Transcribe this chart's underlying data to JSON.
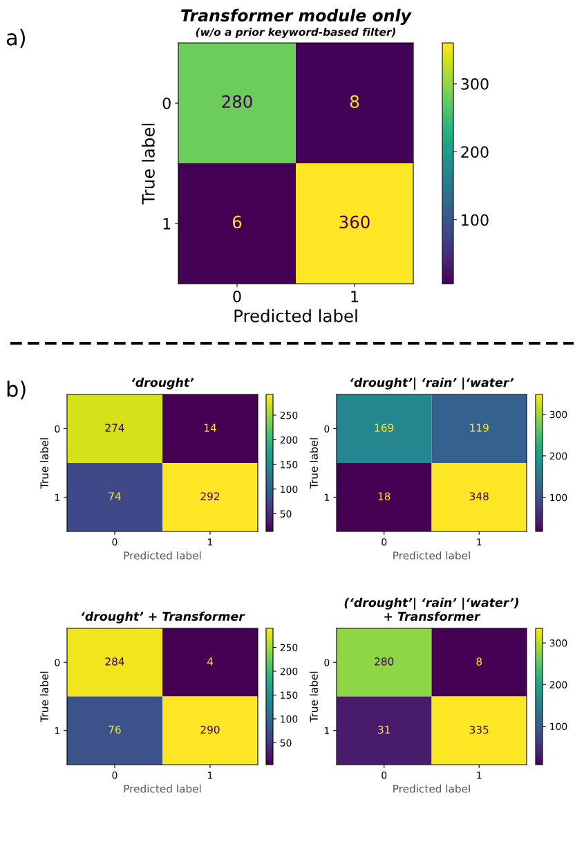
{
  "chart_data": [
    {
      "type": "heatmap",
      "title": "Transformer module only",
      "subtitle": "(w/o a prior keyword-based filter)",
      "xlabel": "Predicted label",
      "ylabel": "True label",
      "categories": [
        "0",
        "1"
      ],
      "y_categories": [
        "0",
        "1"
      ],
      "cells": [
        [
          280,
          8
        ],
        [
          6,
          360
        ]
      ],
      "clim": [
        6,
        360
      ],
      "cticks": [
        100,
        200,
        300
      ],
      "data_labels": true,
      "annotations": [
        "a)"
      ]
    },
    {
      "type": "heatmap",
      "title": "‘drought’",
      "xlabel": "Predicted label",
      "ylabel": "True label",
      "categories": [
        "0",
        "1"
      ],
      "y_categories": [
        "0",
        "1"
      ],
      "cells": [
        [
          274,
          14
        ],
        [
          74,
          292
        ]
      ],
      "clim": [
        14,
        292
      ],
      "cticks": [
        50,
        100,
        150,
        200,
        250
      ],
      "data_labels": true,
      "annotations": [
        "b)"
      ]
    },
    {
      "type": "heatmap",
      "title": "‘drought’| ‘rain’ |‘water’",
      "xlabel": "Predicted label",
      "ylabel": "True label",
      "categories": [
        "0",
        "1"
      ],
      "y_categories": [
        "0",
        "1"
      ],
      "cells": [
        [
          169,
          119
        ],
        [
          18,
          348
        ]
      ],
      "clim": [
        18,
        348
      ],
      "cticks": [
        100,
        200,
        300
      ],
      "data_labels": true
    },
    {
      "type": "heatmap",
      "title": "‘drought’ + Transformer",
      "xlabel": "Predicted label",
      "ylabel": "True label",
      "categories": [
        "0",
        "1"
      ],
      "y_categories": [
        "0",
        "1"
      ],
      "cells": [
        [
          284,
          4
        ],
        [
          76,
          290
        ]
      ],
      "clim": [
        4,
        290
      ],
      "cticks": [
        50,
        100,
        150,
        200,
        250
      ],
      "data_labels": true
    },
    {
      "type": "heatmap",
      "title": "(‘drought’| ‘rain’ |‘water’)\n+ Transformer",
      "xlabel": "Predicted label",
      "ylabel": "True label",
      "categories": [
        "0",
        "1"
      ],
      "y_categories": [
        "0",
        "1"
      ],
      "cells": [
        [
          280,
          8
        ],
        [
          31,
          335
        ]
      ],
      "clim": [
        8,
        335
      ],
      "cticks": [
        100,
        200,
        300
      ],
      "data_labels": true
    }
  ]
}
